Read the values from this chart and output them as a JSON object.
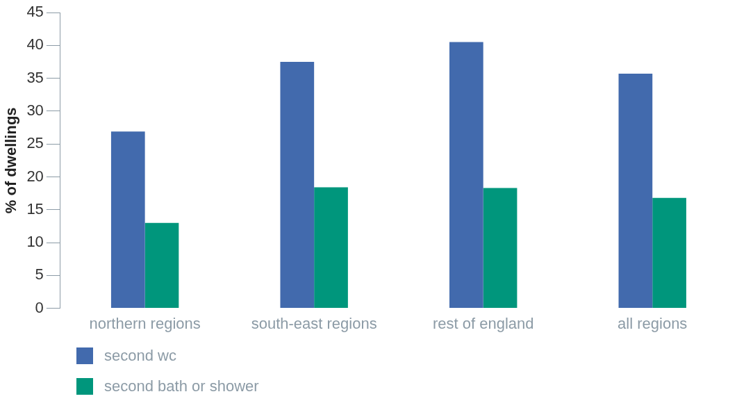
{
  "chart_data": {
    "type": "bar",
    "ylabel": "% of dwellings",
    "categories": [
      "northern regions",
      "south-east regions",
      "rest of england",
      "all regions"
    ],
    "series": [
      {
        "name": "second wc",
        "color": "#426aad",
        "values": [
          26.9,
          37.5,
          40.5,
          35.7
        ]
      },
      {
        "name": "second bath or shower",
        "color": "#00967c",
        "values": [
          13.0,
          18.4,
          18.3,
          16.8
        ]
      }
    ],
    "ylim": [
      0,
      45
    ],
    "yticks": [
      0,
      5,
      10,
      15,
      20,
      25,
      30,
      35,
      40,
      45
    ],
    "grid": false,
    "legend": "bottom left"
  }
}
